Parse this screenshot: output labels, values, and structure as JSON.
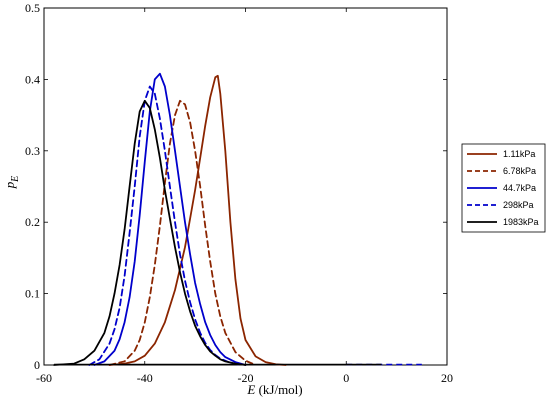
{
  "chart_data": {
    "type": "line",
    "xlabel_main": "E",
    "xlabel_units": " (kJ/mol)",
    "ylabel_main": "p",
    "ylabel_sub": "E",
    "xlim": [
      -60,
      20
    ],
    "ylim": [
      0,
      0.5
    ],
    "xticks": [
      -60,
      -40,
      -20,
      0,
      20
    ],
    "yticks": [
      0,
      0.1,
      0.2,
      0.3,
      0.4,
      0.5
    ],
    "grid": false,
    "legend_position": "right",
    "series": [
      {
        "name": "1.11kPa",
        "color": "#8b2500",
        "dash": "solid",
        "x": [
          -47,
          -44,
          -42,
          -40,
          -38,
          -36,
          -34,
          -32,
          -31,
          -30,
          -29,
          -28,
          -27,
          -26,
          -25.5,
          -25,
          -24,
          -23,
          -22,
          -21,
          -20,
          -18,
          -16,
          -14,
          -12
        ],
        "y": [
          0,
          0.002,
          0.005,
          0.013,
          0.03,
          0.06,
          0.105,
          0.165,
          0.205,
          0.245,
          0.29,
          0.335,
          0.375,
          0.403,
          0.405,
          0.38,
          0.3,
          0.2,
          0.12,
          0.065,
          0.035,
          0.012,
          0.004,
          0.001,
          0
        ]
      },
      {
        "name": "6.78kPa",
        "color": "#8b2500",
        "dash": "dashed",
        "x": [
          -47,
          -44,
          -42,
          -41,
          -40,
          -39,
          -38,
          -37,
          -36,
          -35,
          -34,
          -33,
          -32,
          -31,
          -30,
          -29,
          -28,
          -27,
          -26,
          -25,
          -24,
          -22,
          -20,
          -18
        ],
        "y": [
          0,
          0.005,
          0.02,
          0.035,
          0.06,
          0.095,
          0.14,
          0.195,
          0.255,
          0.31,
          0.35,
          0.37,
          0.365,
          0.34,
          0.3,
          0.25,
          0.195,
          0.145,
          0.1,
          0.068,
          0.045,
          0.018,
          0.006,
          0
        ]
      },
      {
        "name": "44.7kPa",
        "color": "#0000cc",
        "dash": "solid",
        "x": [
          -50,
          -48,
          -46,
          -45,
          -44,
          -43,
          -42,
          -41,
          -40,
          -39,
          -38,
          -37,
          -36,
          -35,
          -34,
          -33,
          -32,
          -31,
          -30,
          -29,
          -28,
          -27,
          -26,
          -25,
          -24,
          -22,
          -20
        ],
        "y": [
          0,
          0.005,
          0.02,
          0.036,
          0.06,
          0.095,
          0.145,
          0.21,
          0.285,
          0.355,
          0.4,
          0.408,
          0.39,
          0.35,
          0.3,
          0.25,
          0.2,
          0.155,
          0.115,
          0.085,
          0.06,
          0.042,
          0.028,
          0.018,
          0.011,
          0.004,
          0
        ]
      },
      {
        "name": "298kPa",
        "color": "#0000cc",
        "dash": "dashed",
        "x": [
          -51,
          -49,
          -47,
          -46,
          -45,
          -44,
          -43,
          -42,
          -41,
          -40,
          -39,
          -38,
          -37,
          -36,
          -35,
          -34,
          -33,
          -32,
          -31,
          -30,
          -29,
          -28,
          -27,
          -26,
          -25,
          -23,
          -21
        ],
        "y": [
          0,
          0.008,
          0.03,
          0.05,
          0.08,
          0.125,
          0.185,
          0.25,
          0.32,
          0.37,
          0.39,
          0.38,
          0.345,
          0.3,
          0.25,
          0.2,
          0.155,
          0.118,
          0.088,
          0.064,
          0.045,
          0.031,
          0.021,
          0.014,
          0.009,
          0.003,
          0
        ]
      },
      {
        "name": "1983kPa",
        "color": "#000000",
        "dash": "solid",
        "x": [
          -58,
          -54,
          -52,
          -50,
          -48,
          -47,
          -46,
          -45,
          -44,
          -43,
          -42,
          -41,
          -40,
          -39,
          -38,
          -37,
          -36,
          -35,
          -34,
          -33,
          -32,
          -31,
          -30,
          -29,
          -28,
          -27,
          -26,
          -25,
          -24,
          -22,
          -20
        ],
        "y": [
          0,
          0.002,
          0.008,
          0.02,
          0.045,
          0.068,
          0.1,
          0.14,
          0.19,
          0.25,
          0.31,
          0.355,
          0.37,
          0.36,
          0.33,
          0.29,
          0.245,
          0.205,
          0.165,
          0.13,
          0.1,
          0.075,
          0.055,
          0.04,
          0.028,
          0.019,
          0.013,
          0.008,
          0.005,
          0.002,
          0
        ]
      }
    ],
    "faint_tail": {
      "color": "#0000cc",
      "x": [
        0,
        15
      ],
      "y": [
        0,
        0
      ]
    }
  }
}
